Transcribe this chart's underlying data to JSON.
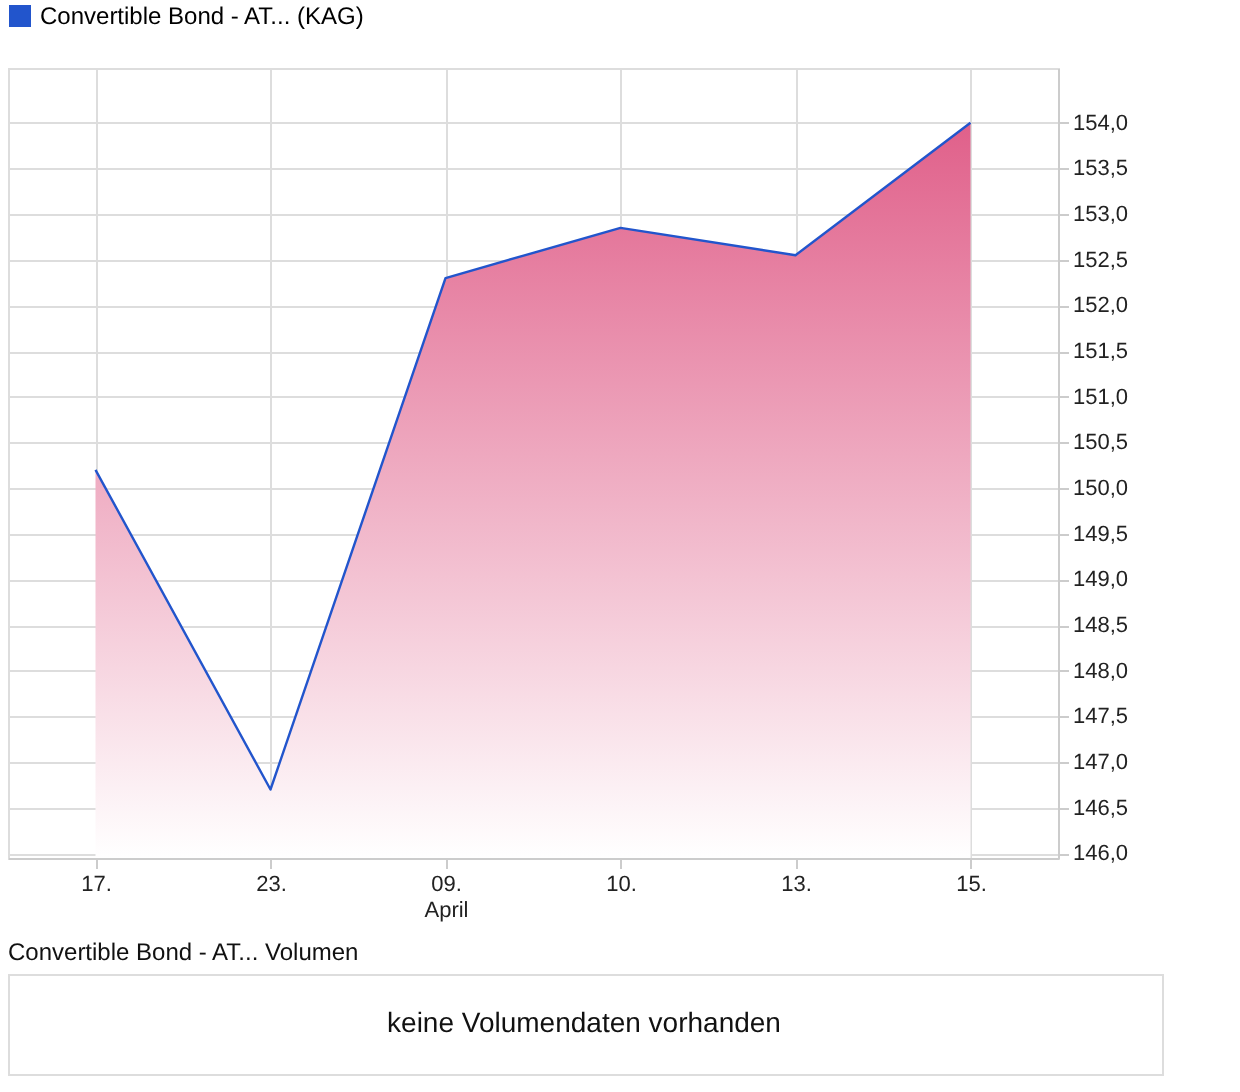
{
  "chart_data": [
    {
      "type": "area",
      "categories": [
        "17.",
        "23.",
        "09.\nApril",
        "10.",
        "13.",
        "15."
      ],
      "series": [
        {
          "name": "Convertible Bond - AT... (KAG)",
          "color": "#2255cc",
          "values": [
            150.2,
            146.7,
            152.3,
            152.85,
            152.55,
            154.0
          ]
        }
      ],
      "ylim": [
        145.95,
        154.6
      ],
      "yticks": [
        {
          "value": 146,
          "label": "146,0"
        },
        {
          "value": 146.5,
          "label": "146,5"
        },
        {
          "value": 147,
          "label": "147,0"
        },
        {
          "value": 147.5,
          "label": "147,5"
        },
        {
          "value": 148,
          "label": "148,0"
        },
        {
          "value": 148.5,
          "label": "148,5"
        },
        {
          "value": 149,
          "label": "149,0"
        },
        {
          "value": 149.5,
          "label": "149,5"
        },
        {
          "value": 150,
          "label": "150,0"
        },
        {
          "value": 150.5,
          "label": "150,5"
        },
        {
          "value": 151,
          "label": "151,0"
        },
        {
          "value": 151.5,
          "label": "151,5"
        },
        {
          "value": 152,
          "label": "152,0"
        },
        {
          "value": 152.5,
          "label": "152,5"
        },
        {
          "value": 153,
          "label": "153,0"
        },
        {
          "value": 153.5,
          "label": "153,5"
        },
        {
          "value": 154,
          "label": "154,0"
        }
      ],
      "grid": true,
      "legend": "top left"
    },
    {
      "type": "other",
      "title": "Convertible Bond - AT... Volumen",
      "annotations": [
        "keine Volumendaten vorhanden"
      ]
    }
  ]
}
